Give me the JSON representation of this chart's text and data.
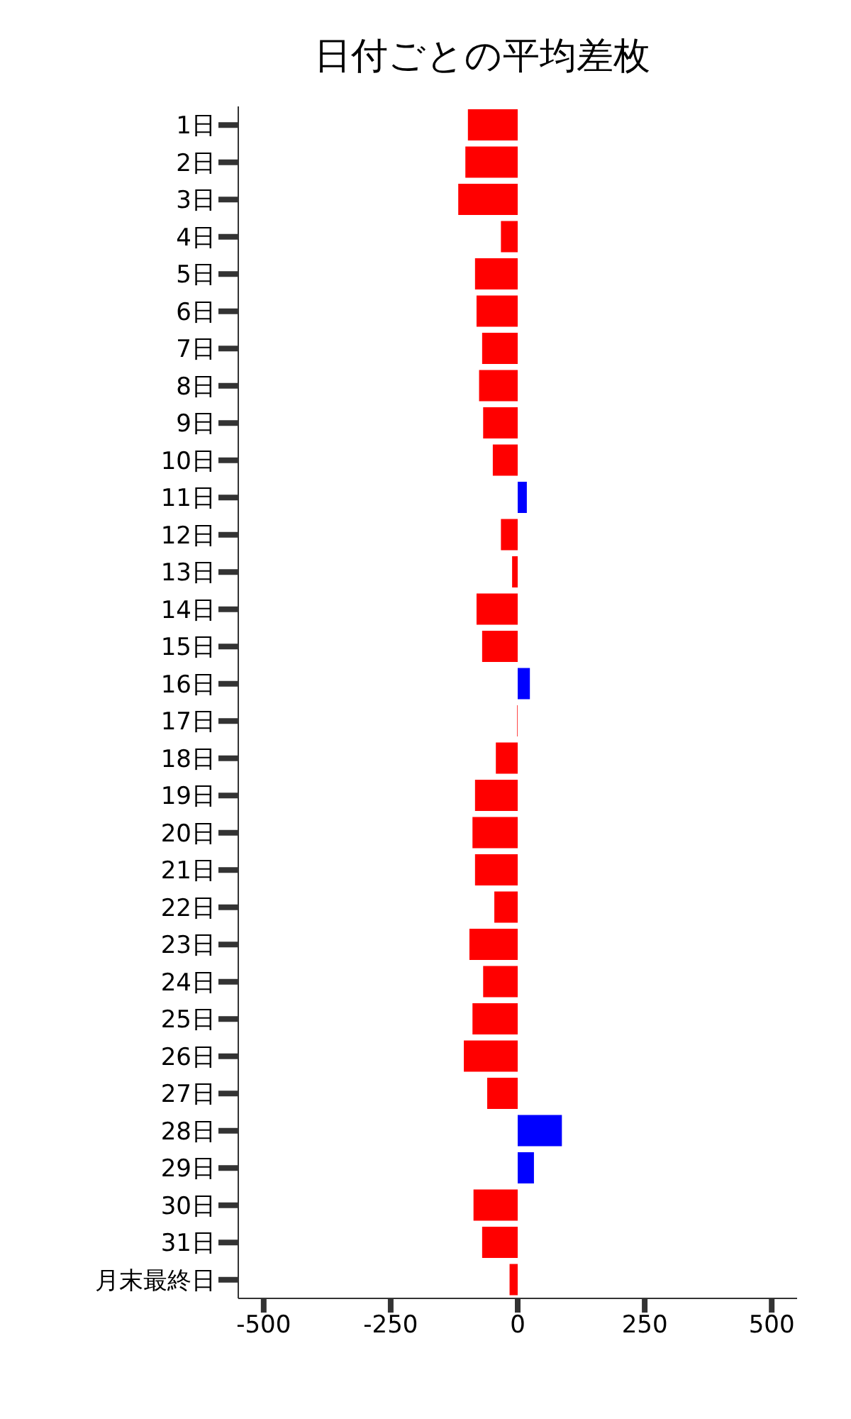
{
  "chart_data": {
    "type": "bar",
    "orientation": "horizontal",
    "title": "日付ごとの平均差枚",
    "categories": [
      "1日",
      "2日",
      "3日",
      "4日",
      "5日",
      "6日",
      "7日",
      "8日",
      "9日",
      "10日",
      "11日",
      "12日",
      "13日",
      "14日",
      "15日",
      "16日",
      "17日",
      "18日",
      "19日",
      "20日",
      "21日",
      "22日",
      "23日",
      "24日",
      "25日",
      "26日",
      "27日",
      "28日",
      "29日",
      "30日",
      "31日",
      "月末最終日"
    ],
    "values": [
      -98,
      -103,
      -117,
      -33,
      -84,
      -81,
      -70,
      -76,
      -68,
      -49,
      18,
      -33,
      -11,
      -81,
      -70,
      24,
      -1,
      -43,
      -84,
      -89,
      -84,
      -46,
      -95,
      -68,
      -89,
      -106,
      -60,
      87,
      32,
      -87,
      -70,
      -16
    ],
    "colors": [
      "#ff0000",
      "#ff0000",
      "#ff0000",
      "#ff0000",
      "#ff0000",
      "#ff0000",
      "#ff0000",
      "#ff0000",
      "#ff0000",
      "#ff0000",
      "#0000ff",
      "#ff0000",
      "#ff0000",
      "#ff0000",
      "#ff0000",
      "#0000ff",
      "#ff0000",
      "#ff0000",
      "#ff0000",
      "#ff0000",
      "#ff0000",
      "#ff0000",
      "#ff0000",
      "#ff0000",
      "#ff0000",
      "#ff0000",
      "#ff0000",
      "#0000ff",
      "#0000ff",
      "#ff0000",
      "#ff0000",
      "#ff0000"
    ],
    "xlim": [
      -550,
      550
    ],
    "xticks": [
      -500,
      -250,
      0,
      250,
      500
    ],
    "grid": false,
    "legend": false
  }
}
